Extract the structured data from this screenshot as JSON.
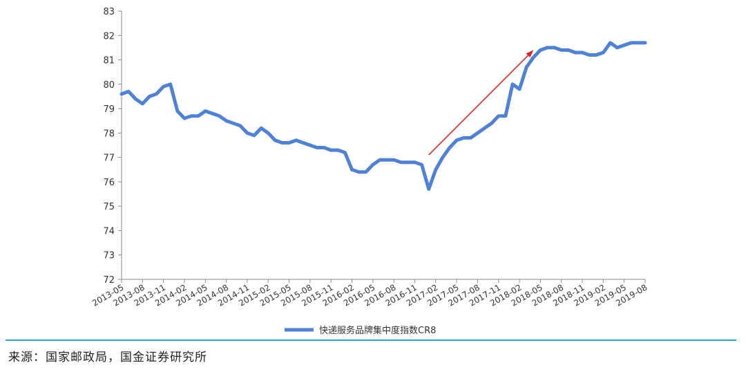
{
  "chart_data": {
    "type": "line",
    "ylim": [
      72,
      83
    ],
    "yticks": [
      72,
      73,
      74,
      75,
      76,
      77,
      78,
      79,
      80,
      81,
      82,
      83
    ],
    "xtick_labels": [
      "2013-05",
      "2013-08",
      "2013-11",
      "2014-02",
      "2014-05",
      "2014-08",
      "2014-11",
      "2015-02",
      "2015-05",
      "2015-08",
      "2015-11",
      "2016-02",
      "2016-05",
      "2016-08",
      "2016-11",
      "2017-02",
      "2017-05",
      "2017-08",
      "2017-11",
      "2018-02",
      "2018-05",
      "2018-08",
      "2018-11",
      "2019-02",
      "2019-05",
      "2019-08"
    ],
    "x": [
      "2013-05",
      "2013-06",
      "2013-07",
      "2013-08",
      "2013-09",
      "2013-10",
      "2013-11",
      "2013-12",
      "2014-01",
      "2014-02",
      "2014-03",
      "2014-04",
      "2014-05",
      "2014-06",
      "2014-07",
      "2014-08",
      "2014-09",
      "2014-10",
      "2014-11",
      "2014-12",
      "2015-01",
      "2015-02",
      "2015-03",
      "2015-04",
      "2015-05",
      "2015-06",
      "2015-07",
      "2015-08",
      "2015-09",
      "2015-10",
      "2015-11",
      "2015-12",
      "2016-01",
      "2016-02",
      "2016-03",
      "2016-04",
      "2016-05",
      "2016-06",
      "2016-07",
      "2016-08",
      "2016-09",
      "2016-10",
      "2016-11",
      "2016-12",
      "2017-01",
      "2017-02",
      "2017-03",
      "2017-04",
      "2017-05",
      "2017-06",
      "2017-07",
      "2017-08",
      "2017-09",
      "2017-10",
      "2017-11",
      "2017-12",
      "2018-01",
      "2018-02",
      "2018-03",
      "2018-04",
      "2018-05",
      "2018-06",
      "2018-07",
      "2018-08",
      "2018-09",
      "2018-10",
      "2018-11",
      "2018-12",
      "2019-01",
      "2019-02",
      "2019-03",
      "2019-04",
      "2019-05",
      "2019-06",
      "2019-07",
      "2019-08"
    ],
    "series": [
      {
        "name": "快递服务品牌集中度指数CR8",
        "color": "#4f81d6",
        "values": [
          79.6,
          79.7,
          79.4,
          79.2,
          79.5,
          79.6,
          79.9,
          80.0,
          78.9,
          78.6,
          78.7,
          78.7,
          78.9,
          78.8,
          78.7,
          78.5,
          78.4,
          78.3,
          78.0,
          77.9,
          78.2,
          78.0,
          77.7,
          77.6,
          77.6,
          77.7,
          77.6,
          77.5,
          77.4,
          77.4,
          77.3,
          77.3,
          77.2,
          76.5,
          76.4,
          76.4,
          76.7,
          76.9,
          76.9,
          76.9,
          76.8,
          76.8,
          76.8,
          76.7,
          75.7,
          76.5,
          77.0,
          77.4,
          77.7,
          77.8,
          77.8,
          78.0,
          78.2,
          78.4,
          78.7,
          78.7,
          80.0,
          79.8,
          80.7,
          81.1,
          81.4,
          81.5,
          81.5,
          81.4,
          81.4,
          81.3,
          81.3,
          81.2,
          81.2,
          81.3,
          81.7,
          81.5,
          81.6,
          81.7,
          81.7,
          81.7
        ]
      }
    ],
    "annotation": {
      "type": "arrow",
      "color": "#e02020",
      "from": {
        "x": "2017-01",
        "y": 77.1
      },
      "to": {
        "x": "2018-04",
        "y": 81.4
      }
    },
    "legend_position": "bottom-center",
    "grid": false
  },
  "legend": {
    "label": "快递服务品牌集中度指数CR8"
  },
  "source": "来源：国家邮政局，国金证券研究所",
  "colors": {
    "divider": "#2ea2de",
    "axis": "#888888"
  }
}
